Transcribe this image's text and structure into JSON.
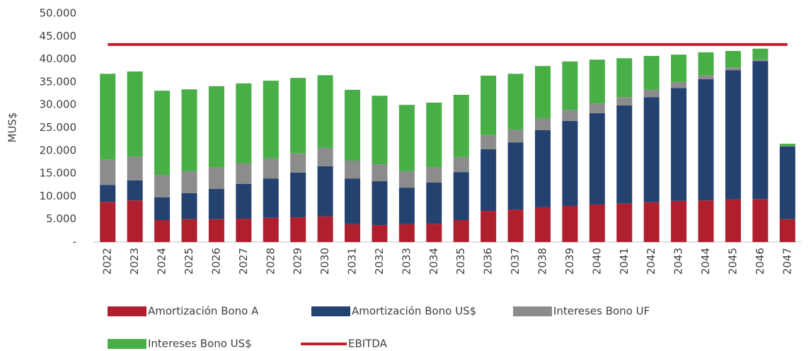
{
  "chart_data": {
    "type": "bar",
    "stacked": true,
    "y_label": "MUS$",
    "categories": [
      "2022",
      "2023",
      "2024",
      "2025",
      "2026",
      "2027",
      "2028",
      "2029",
      "2030",
      "2031",
      "2032",
      "2033",
      "2034",
      "2035",
      "2036",
      "2037",
      "2038",
      "2039",
      "2040",
      "2041",
      "2042",
      "2043",
      "2044",
      "2045",
      "2046",
      "2047"
    ],
    "series": [
      {
        "name": "Amortización Bono A",
        "color": "#b01f2e",
        "values": [
          8800,
          9100,
          4800,
          5000,
          5000,
          5100,
          5300,
          5400,
          5600,
          3900,
          3700,
          3900,
          4000,
          4800,
          6800,
          7100,
          7600,
          7900,
          8200,
          8400,
          8700,
          9000,
          9100,
          9300,
          9400,
          5000
        ]
      },
      {
        "name": "Amortización Bono US$",
        "color": "#24426f",
        "values": [
          3700,
          4400,
          5000,
          5700,
          6600,
          7600,
          8600,
          9800,
          11000,
          10000,
          9600,
          8000,
          9000,
          10500,
          13500,
          14700,
          16900,
          18600,
          20000,
          21500,
          23000,
          24700,
          26500,
          28300,
          30200,
          15900
        ]
      },
      {
        "name": "Intereses Bono UF",
        "color": "#8c8c8c",
        "values": [
          5500,
          5200,
          4900,
          4800,
          4800,
          4500,
          4400,
          4200,
          4000,
          3900,
          3700,
          3600,
          3400,
          3300,
          3100,
          2800,
          2600,
          2400,
          2100,
          1800,
          1600,
          1300,
          900,
          600,
          300,
          100
        ]
      },
      {
        "name": "Intereses Bono US$",
        "color": "#48ae46",
        "values": [
          18800,
          18600,
          18400,
          17900,
          17700,
          17500,
          17000,
          16500,
          15900,
          15500,
          15000,
          14500,
          14100,
          13600,
          13000,
          12200,
          11400,
          10600,
          9600,
          8500,
          7400,
          6000,
          5000,
          3600,
          2400,
          500
        ]
      },
      {
        "name": "EBITDA",
        "type": "line",
        "color": "#c0202e",
        "values": [
          43200,
          43200,
          43200,
          43200,
          43200,
          43200,
          43200,
          43200,
          43200,
          43200,
          43200,
          43200,
          43200,
          43200,
          43200,
          43200,
          43200,
          43200,
          43200,
          43200,
          43200,
          43200,
          43200,
          43200,
          43200,
          43200
        ]
      }
    ],
    "ylim": [
      0,
      50000
    ],
    "yticks": [
      {
        "value": 0,
        "label": "-"
      },
      {
        "value": 5000,
        "label": "5.000"
      },
      {
        "value": 10000,
        "label": "10.000"
      },
      {
        "value": 15000,
        "label": "15.000"
      },
      {
        "value": 20000,
        "label": "20.000"
      },
      {
        "value": 25000,
        "label": "25.000"
      },
      {
        "value": 30000,
        "label": "30.000"
      },
      {
        "value": 35000,
        "label": "35.000"
      },
      {
        "value": 40000,
        "label": "40.000"
      },
      {
        "value": 45000,
        "label": "45.000"
      },
      {
        "value": 50000,
        "label": "50.000"
      }
    ],
    "grid": false,
    "legend": "bottom"
  }
}
